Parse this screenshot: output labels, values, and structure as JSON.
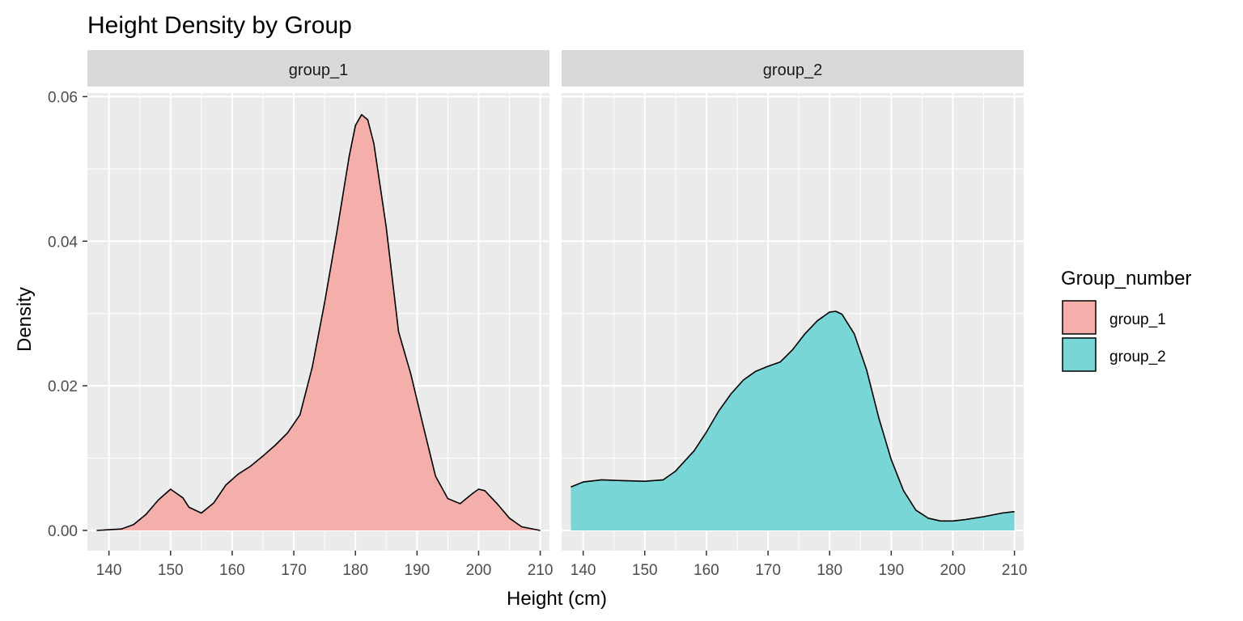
{
  "chart_data": {
    "type": "area",
    "title": "Height Density by Group",
    "xlabel": "Height (cm)",
    "ylabel": "Density",
    "xlim": [
      136.5,
      211.5
    ],
    "ylim": [
      -0.0028,
      0.0605
    ],
    "x_ticks": [
      140,
      150,
      160,
      170,
      180,
      190,
      200,
      210
    ],
    "x_tick_labels": [
      "140",
      "150",
      "160",
      "170",
      "180",
      "190",
      "200",
      "210"
    ],
    "y_ticks": [
      0,
      0.02,
      0.04,
      0.06
    ],
    "y_tick_labels": [
      "0.00",
      "0.02",
      "0.04",
      "0.06"
    ],
    "grid": true,
    "legend": {
      "title": "Group_number",
      "position": "right",
      "entries": [
        "group_1",
        "group_2"
      ]
    },
    "colors": {
      "group_1": "#F4AFAB",
      "group_2": "#78D6D7",
      "panel_bg": "#EBEBEB",
      "strip_bg": "#D9D9D9",
      "grid": "#FFFFFF"
    },
    "series": [
      {
        "name": "group_1",
        "facet": "group_1",
        "x": [
          138,
          142,
          144,
          146,
          148,
          150,
          152,
          153,
          155,
          157,
          159,
          161,
          163,
          165,
          167,
          169,
          171,
          173,
          175,
          177,
          179,
          180,
          181,
          182,
          183,
          185,
          187,
          189,
          191,
          193,
          195,
          197,
          199,
          200,
          201,
          203,
          205,
          207,
          210
        ],
        "y": [
          0.0,
          0.0002,
          0.0008,
          0.0022,
          0.0042,
          0.0057,
          0.0045,
          0.0032,
          0.0024,
          0.0038,
          0.0063,
          0.0078,
          0.0089,
          0.0103,
          0.0118,
          0.0135,
          0.016,
          0.0226,
          0.0315,
          0.0413,
          0.0518,
          0.056,
          0.0575,
          0.0568,
          0.0535,
          0.042,
          0.0275,
          0.0216,
          0.0145,
          0.0075,
          0.0044,
          0.0037,
          0.0051,
          0.0057,
          0.0055,
          0.0037,
          0.0017,
          0.0005,
          0.0
        ]
      },
      {
        "name": "group_2",
        "facet": "group_2",
        "x": [
          138,
          140,
          143,
          146,
          150,
          153,
          155,
          158,
          160,
          162,
          164,
          166,
          168,
          170,
          172,
          174,
          176,
          178,
          180,
          181,
          182,
          184,
          186,
          188,
          190,
          192,
          194,
          196,
          198,
          200,
          202,
          205,
          208,
          210
        ],
        "y": [
          0.006,
          0.0067,
          0.007,
          0.0069,
          0.0068,
          0.007,
          0.0082,
          0.011,
          0.0136,
          0.0165,
          0.0189,
          0.0208,
          0.022,
          0.0227,
          0.0233,
          0.025,
          0.0272,
          0.029,
          0.0302,
          0.0303,
          0.0299,
          0.0272,
          0.0222,
          0.0155,
          0.0098,
          0.0055,
          0.0028,
          0.0017,
          0.0013,
          0.0013,
          0.0015,
          0.0019,
          0.0024,
          0.0026
        ]
      }
    ]
  }
}
